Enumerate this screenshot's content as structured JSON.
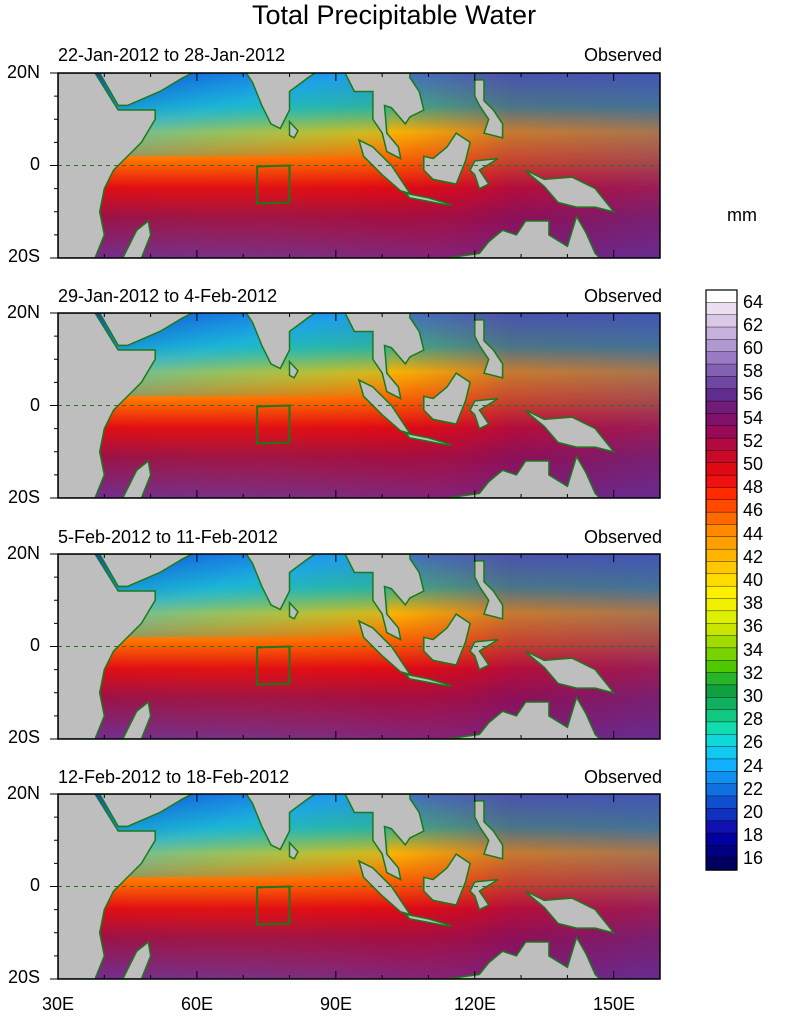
{
  "title": "Total Precipitable Water",
  "panels": [
    {
      "date_range": "22-Jan-2012 to 28-Jan-2012",
      "status": "Observed"
    },
    {
      "date_range": "29-Jan-2012 to 4-Feb-2012",
      "status": "Observed"
    },
    {
      "date_range": "5-Feb-2012 to 11-Feb-2012",
      "status": "Observed"
    },
    {
      "date_range": "12-Feb-2012 to 18-Feb-2012",
      "status": "Observed"
    }
  ],
  "lat_labels": [
    "20N",
    "0",
    "20S"
  ],
  "lon_labels": [
    "30E",
    "60E",
    "90E",
    "120E",
    "150E"
  ],
  "colorbar": {
    "unit": "mm",
    "labels": [
      "64",
      "62",
      "60",
      "58",
      "56",
      "54",
      "52",
      "50",
      "48",
      "46",
      "44",
      "42",
      "40",
      "38",
      "36",
      "34",
      "32",
      "30",
      "28",
      "26",
      "24",
      "22",
      "20",
      "18",
      "16"
    ],
    "colors_top_to_bottom": [
      "#ffffff",
      "#ece0f0",
      "#d9c8e6",
      "#c6b0dc",
      "#b098d0",
      "#9a7cc4",
      "#8460b4",
      "#7048a4",
      "#602c90",
      "#701c78",
      "#80106a",
      "#980a58",
      "#b00a40",
      "#c80a28",
      "#e00a14",
      "#f01010",
      "#ff2a00",
      "#ff4a00",
      "#ff6a00",
      "#ff8a00",
      "#ffa000",
      "#ffb400",
      "#ffc800",
      "#ffdc00",
      "#fff000",
      "#f0f000",
      "#dcf000",
      "#c8e600",
      "#a0dc00",
      "#78d200",
      "#50c800",
      "#28b428",
      "#10a040",
      "#10b060",
      "#10c880",
      "#10dcb0",
      "#10d8d8",
      "#10c8f0",
      "#10b0ff",
      "#1090f0",
      "#1070e0",
      "#1050d0",
      "#1030c0",
      "#1010b0",
      "#0000a0",
      "#000080",
      "#000060"
    ],
    "range": [
      15,
      65
    ]
  },
  "map": {
    "lon_range": [
      30,
      160
    ],
    "lat_range": [
      -20,
      20
    ],
    "box_region": {
      "lon": [
        73,
        80
      ],
      "lat": [
        -8,
        0
      ]
    },
    "land_color": "#bebebe",
    "coast_color": "#1a7a1a"
  }
}
